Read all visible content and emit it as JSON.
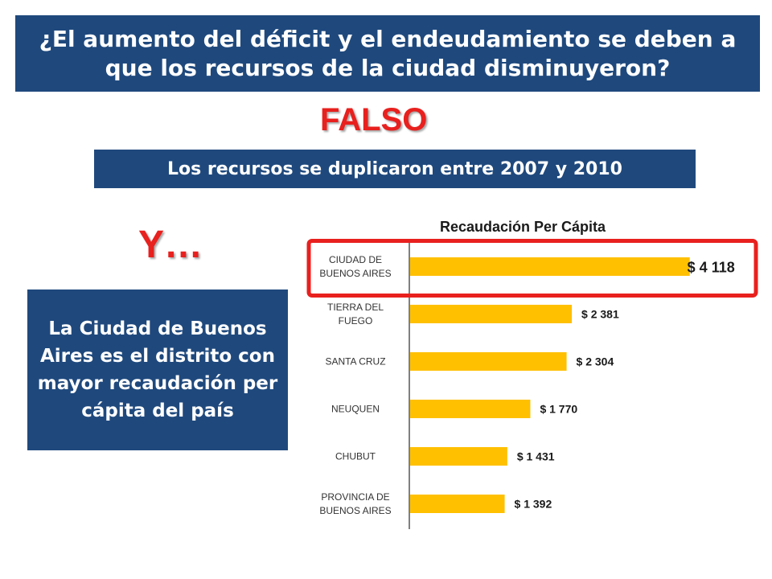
{
  "header": {
    "title": "¿El aumento del déficit y el endeudamiento se deben a que los recursos de la ciudad disminuyeron?"
  },
  "verdict": "FALSO",
  "subtitle": "Los recursos se duplicaron entre 2007 y 2010",
  "y_text": "Y…",
  "info_box": "La Ciudad de Buenos Aires es el distrito con mayor recaudación per cápita del país",
  "colors": {
    "banner": "#1f497d",
    "accent_red": "#e8201e",
    "bar": "#ffc000"
  },
  "chart_data": {
    "type": "bar",
    "orientation": "horizontal",
    "title": "Recaudación Per Cápita",
    "categories": [
      [
        "CIUDAD DE",
        "BUENOS AIRES"
      ],
      [
        "TIERRA  DEL",
        "FUEGO"
      ],
      [
        "SANTA  CRUZ"
      ],
      [
        "NEUQUEN"
      ],
      [
        "CHUBUT"
      ],
      [
        "PROVINCIA DE",
        "BUENOS AIRES"
      ]
    ],
    "values": [
      4118,
      2381,
      2304,
      1770,
      1431,
      1392
    ],
    "value_labels": [
      "$ 4 118",
      "$ 2 381",
      "$ 2 304",
      "$ 1 770",
      "$ 1 431",
      "$ 1 392"
    ],
    "highlighted_index": 0,
    "xlim": [
      0,
      4500
    ]
  }
}
